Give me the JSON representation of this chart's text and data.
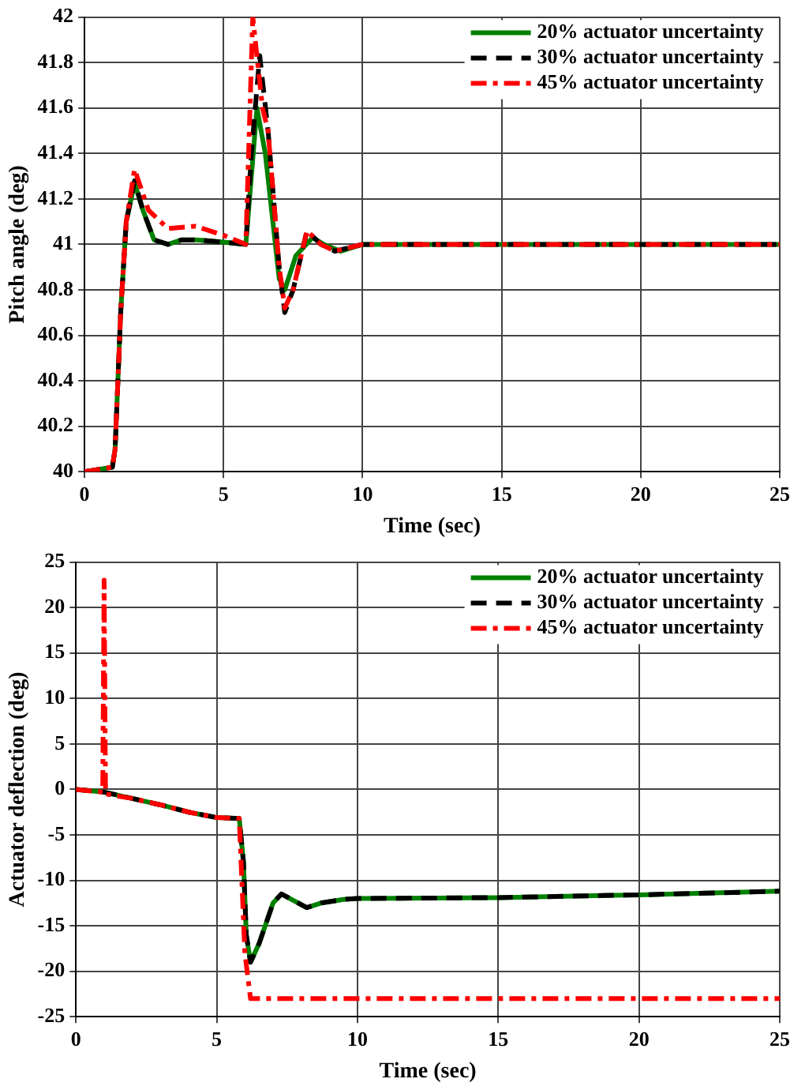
{
  "chart_data": [
    {
      "type": "line",
      "xlabel": "Time (sec)",
      "ylabel": "Pitch angle (deg)",
      "xlim": [
        0,
        25
      ],
      "ylim": [
        40,
        42
      ],
      "xticks": [
        0,
        5,
        10,
        15,
        20,
        25
      ],
      "yticks": [
        40,
        40.2,
        40.4,
        40.6,
        40.8,
        41,
        41.2,
        41.4,
        41.6,
        41.8,
        42
      ],
      "grid": true,
      "legend": "top right",
      "marker": "none",
      "series": [
        {
          "name": "20% actuator uncertainty",
          "color": "#008000",
          "line_style": "solid",
          "x": [
            0,
            1,
            1.1,
            1.3,
            1.5,
            1.8,
            2.1,
            2.5,
            3,
            3.5,
            4,
            5,
            5.8,
            6,
            6.2,
            6.5,
            7,
            7.2,
            7.6,
            8.2,
            8.6,
            9.2,
            10,
            11,
            25
          ],
          "values": [
            40,
            40.02,
            40.1,
            40.7,
            41.1,
            41.27,
            41.15,
            41.02,
            41,
            41.02,
            41.02,
            41.01,
            41,
            41.3,
            41.6,
            41.4,
            40.85,
            40.8,
            40.95,
            41.03,
            41,
            40.97,
            41,
            41,
            41
          ]
        },
        {
          "name": "30% actuator uncertainty",
          "color": "#000000",
          "line_style": "dashed",
          "x": [
            0,
            1,
            1.1,
            1.3,
            1.5,
            1.8,
            2.1,
            2.5,
            3,
            3.5,
            4,
            5,
            5.8,
            6,
            6.3,
            6.6,
            7,
            7.2,
            7.5,
            8,
            8.5,
            9,
            10,
            11,
            25
          ],
          "values": [
            40,
            40.02,
            40.1,
            40.7,
            41.1,
            41.28,
            41.15,
            41.02,
            41,
            41.02,
            41.02,
            41.01,
            41,
            41.4,
            41.83,
            41.5,
            40.9,
            40.7,
            40.8,
            41.06,
            41,
            40.97,
            41,
            41,
            41
          ]
        },
        {
          "name": "45% actuator uncertainty",
          "color": "#ff0000",
          "line_style": "dashdot",
          "x": [
            0,
            1,
            1.1,
            1.3,
            1.5,
            1.8,
            2.3,
            3,
            4,
            5,
            5.8,
            6.05,
            6.4,
            6.6,
            7,
            7.2,
            7.5,
            8,
            8.5,
            9,
            10,
            11,
            25
          ],
          "values": [
            40,
            40.02,
            40.1,
            40.7,
            41.1,
            41.33,
            41.15,
            41.07,
            41.08,
            41.04,
            41,
            42,
            41.6,
            41.5,
            40.9,
            40.72,
            40.8,
            41.06,
            41,
            40.97,
            41,
            41,
            41
          ]
        }
      ]
    },
    {
      "type": "line",
      "xlabel": "Time (sec)",
      "ylabel": "Actuator deflection (deg)",
      "xlim": [
        0,
        25
      ],
      "ylim": [
        -25,
        25
      ],
      "xticks": [
        0,
        5,
        10,
        15,
        20,
        25
      ],
      "yticks": [
        -25,
        -20,
        -15,
        -10,
        -5,
        0,
        5,
        10,
        15,
        20,
        25
      ],
      "grid": true,
      "legend": "top right",
      "marker": "none",
      "series": [
        {
          "name": "20% actuator uncertainty",
          "color": "#008000",
          "line_style": "solid",
          "x": [
            0,
            1,
            2,
            3,
            4,
            5,
            5.8,
            5.95,
            6.05,
            6.2,
            6.5,
            7,
            7.3,
            7.6,
            8.2,
            8.7,
            9.5,
            10,
            15,
            20,
            25
          ],
          "values": [
            0,
            -0.3,
            -1,
            -1.7,
            -2.5,
            -3.1,
            -3.2,
            -8,
            -16,
            -19,
            -17,
            -12.5,
            -11.5,
            -12,
            -13,
            -12.5,
            -12.1,
            -12,
            -11.9,
            -11.6,
            -11.2
          ]
        },
        {
          "name": "30% actuator uncertainty",
          "color": "#000000",
          "line_style": "dashed",
          "x": [
            0,
            1,
            2,
            3,
            4,
            5,
            5.8,
            5.95,
            6.05,
            6.2,
            6.5,
            7,
            7.3,
            7.6,
            8.2,
            8.7,
            9.5,
            10,
            15,
            20,
            25
          ],
          "values": [
            0,
            -0.3,
            -1,
            -1.7,
            -2.5,
            -3.1,
            -3.2,
            -8,
            -16,
            -19,
            -17,
            -12.5,
            -11.5,
            -12,
            -13,
            -12.5,
            -12.1,
            -12,
            -11.9,
            -11.6,
            -11.2
          ]
        },
        {
          "name": "45% actuator uncertainty",
          "color": "#ff0000",
          "line_style": "dashdot",
          "x": [
            0,
            0.95,
            1,
            1.05,
            2,
            3,
            4,
            5,
            5.8,
            6,
            6.2,
            25
          ],
          "values": [
            0,
            -0.3,
            23,
            -0.5,
            -1,
            -1.7,
            -2.5,
            -3.1,
            -3.2,
            -18,
            -23,
            -23
          ]
        }
      ]
    }
  ]
}
